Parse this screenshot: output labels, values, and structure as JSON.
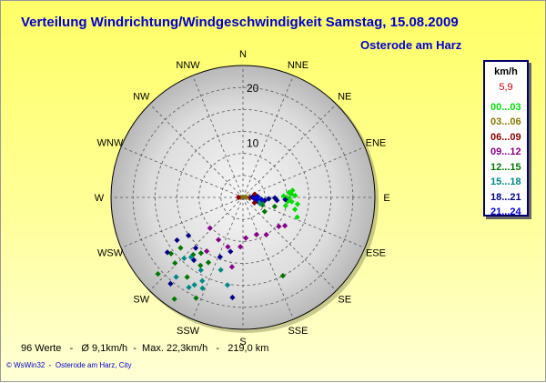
{
  "title": "Verteilung Windrichtung/Windgeschwindigkeit  Samstag, 15.08.2009",
  "location": "Osterode am Harz",
  "stats": "96 Werte   -   Ø 9,1km/h  -  Max. 22,3km/h   -   219,0 km",
  "copyright": "© WsWin32  -  Osterode am Harz, City",
  "legend": {
    "unit": "km/h",
    "value": "5,9",
    "value_color": "#cc0000",
    "items": [
      {
        "label": "00...03",
        "color": "#00dd00"
      },
      {
        "label": "03...06",
        "color": "#887700"
      },
      {
        "label": "06...09",
        "color": "#880000"
      },
      {
        "label": "09...12",
        "color": "#880088"
      },
      {
        "label": "12...15",
        "color": "#007700"
      },
      {
        "label": "15...18",
        "color": "#008888"
      },
      {
        "label": "18...21",
        "color": "#000088"
      },
      {
        "label": "21...24",
        "color": "#0000cc"
      }
    ]
  },
  "chart_data": {
    "type": "scatter",
    "coordinate_system": "polar",
    "angle_unit": "degrees from north, clockwise",
    "radius_unit": "km/h",
    "rmax": 24,
    "radial_tick_labels": [
      {
        "value": 10,
        "label": "10"
      },
      {
        "value": 20,
        "label": "20"
      }
    ],
    "directions": [
      "N",
      "NNE",
      "NE",
      "ENE",
      "E",
      "ESE",
      "SE",
      "SSE",
      "S",
      "SSW",
      "SW",
      "WSW",
      "W",
      "WNW",
      "NW",
      "NNW"
    ],
    "grid": true,
    "legend_placement": "right",
    "series": [
      {
        "name": "00...03",
        "color": "#00dd00",
        "points": [
          [
            82,
            9.1
          ],
          [
            84,
            8.4
          ],
          [
            86,
            8.8
          ],
          [
            88,
            9.5
          ],
          [
            90,
            7.6
          ],
          [
            88,
            7.4
          ],
          [
            91,
            8.4
          ],
          [
            95,
            8.9
          ],
          [
            97,
            10.0
          ],
          [
            103,
            9.7
          ],
          [
            101,
            7.9
          ],
          [
            110,
            10.5
          ],
          [
            95,
            8.2
          ]
        ]
      },
      {
        "name": "03...06",
        "color": "#887700",
        "points": [
          [
            80,
            0.5
          ],
          [
            90,
            0.6
          ],
          [
            270,
            0.4
          ]
        ]
      },
      {
        "name": "06...09",
        "color": "#880000",
        "points": [
          [
            75,
            2.2
          ],
          [
            85,
            2.5
          ],
          [
            95,
            2.0
          ],
          [
            105,
            2.7
          ],
          [
            115,
            2.3
          ],
          [
            92,
            1.3
          ],
          [
            270,
            0.8
          ]
        ]
      },
      {
        "name": "09...12",
        "color": "#880088",
        "points": [
          [
            160,
            7.2
          ],
          [
            176,
            7.4
          ],
          [
            148,
            8.0
          ],
          [
            183,
            9.0
          ],
          [
            210,
            8.9
          ],
          [
            197,
            9.4
          ],
          [
            214,
            11.8
          ],
          [
            189,
            12.8
          ],
          [
            129,
            8.4
          ],
          [
            124,
            9.2
          ],
          [
            227,
            8.2
          ]
        ]
      },
      {
        "name": "12...15",
        "color": "#007700",
        "points": [
          [
            215,
            17.7
          ],
          [
            231,
            14.6
          ],
          [
            226,
            17.2
          ],
          [
            221,
            13.8
          ],
          [
            212,
            14.6
          ],
          [
            217,
            12.7
          ],
          [
            232,
            16.6
          ],
          [
            208,
            13.4
          ],
          [
            228,
            20.8
          ],
          [
            214,
            22.3
          ],
          [
            205,
            20.2
          ],
          [
            153,
            16.0
          ],
          [
            106,
            6.0
          ],
          [
            97,
            3.3
          ],
          [
            103,
            3.5
          ],
          [
            111,
            3.8
          ],
          [
            123,
            4.7
          ]
        ]
      },
      {
        "name": "15...18",
        "color": "#008888",
        "points": [
          [
            209,
            18.2
          ],
          [
            224,
            15.4
          ],
          [
            221,
            14.4
          ],
          [
            220,
            18.9
          ],
          [
            211,
            19.1
          ],
          [
            204,
            18.1
          ],
          [
            210,
            15.3
          ],
          [
            206,
            16.9
          ],
          [
            190,
            16.2
          ],
          [
            197,
            13.8
          ],
          [
            110,
            3.3
          ],
          [
            100,
            3.0
          ],
          [
            92,
            2.8
          ]
        ]
      },
      {
        "name": "18...21",
        "color": "#000088",
        "points": [
          [
            223,
            12.6
          ],
          [
            237,
            14.3
          ],
          [
            235,
            12.1
          ],
          [
            218,
            14.5
          ],
          [
            220,
            20.5
          ],
          [
            186,
            18.3
          ],
          [
            193,
            10.1
          ],
          [
            201,
            11.6
          ],
          [
            234,
            17.0
          ],
          [
            88,
            1.7
          ],
          [
            93,
            2.2
          ],
          [
            98,
            4.0
          ],
          [
            93,
            4.7
          ],
          [
            91,
            5.8
          ],
          [
            95,
            6.2
          ],
          [
            93,
            7.7
          ]
        ]
      },
      {
        "name": "21...24",
        "color": "#0000cc",
        "points": [
          [
            95,
            2.1
          ],
          [
            100,
            2.5
          ],
          [
            87,
            2.7
          ],
          [
            96,
            3.4
          ]
        ]
      }
    ]
  }
}
